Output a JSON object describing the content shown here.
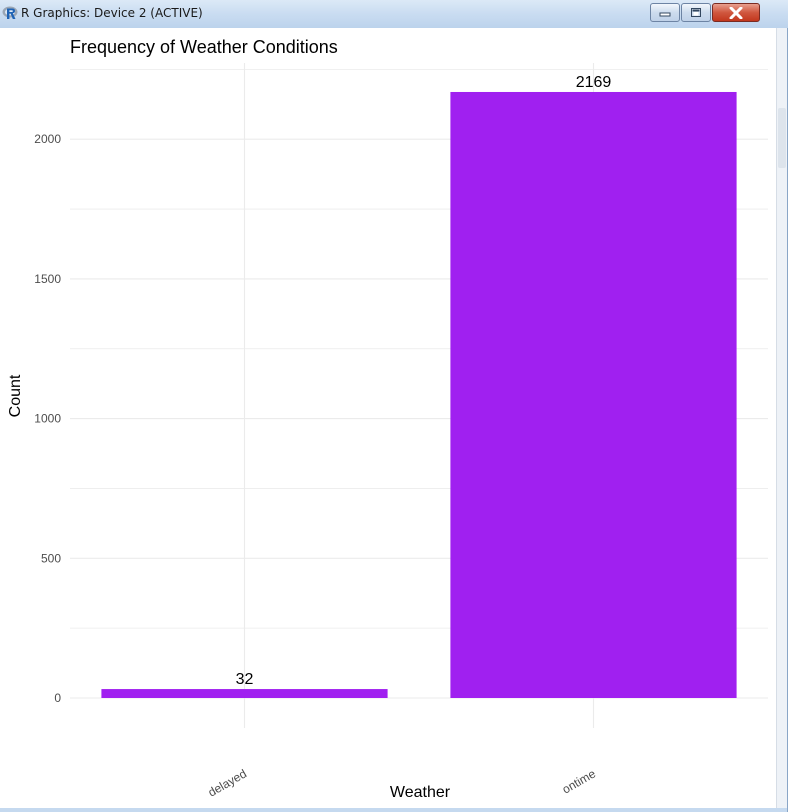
{
  "window": {
    "title": "R Graphics: Device 2 (ACTIVE)",
    "app_icon": "r-logo-icon",
    "controls": [
      "minimize-icon",
      "maximize-icon",
      "close-icon"
    ]
  },
  "colors": {
    "bar": "#A020F0",
    "grid": "#EBEBEB",
    "text": "#000000",
    "tick_text": "#4D4D4D"
  },
  "chart_data": {
    "type": "bar",
    "title": "Frequency of Weather Conditions",
    "xlabel": "Weather",
    "ylabel": "Count",
    "categories": [
      "delayed",
      "ontime"
    ],
    "values": [
      32,
      2169
    ],
    "data_labels": [
      "32",
      "2169"
    ],
    "ylim": [
      0,
      2250
    ],
    "yticks": [
      0,
      500,
      1000,
      1500,
      2000
    ],
    "grid": true,
    "legend": "none",
    "x_tick_label_angle": 30
  }
}
